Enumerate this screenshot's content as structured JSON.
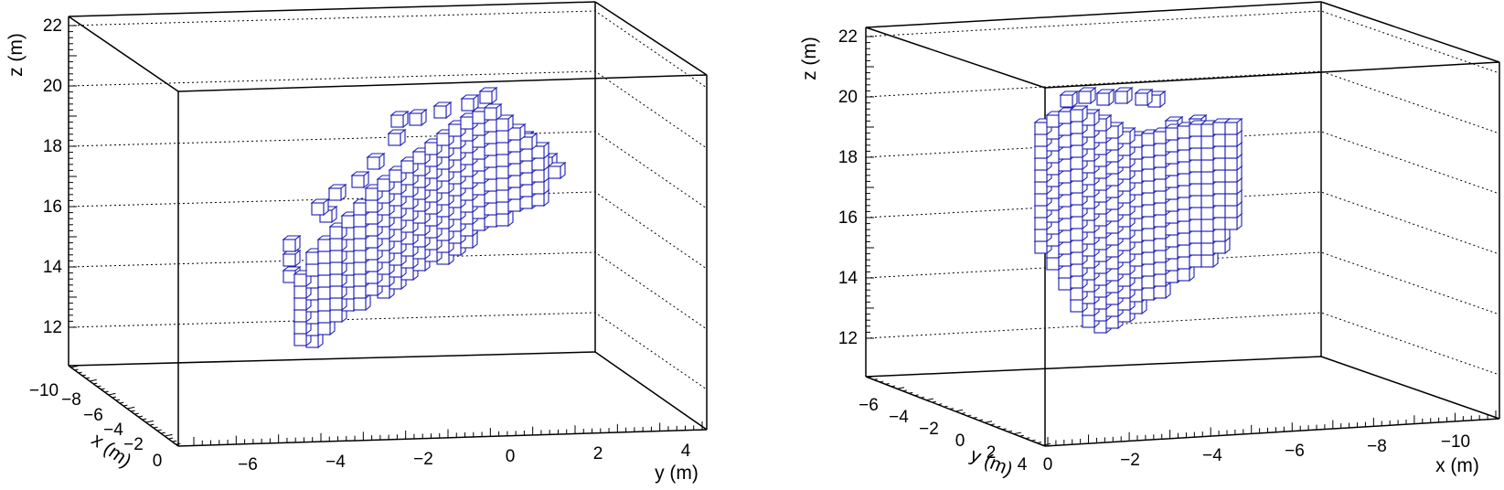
{
  "chart_data": [
    {
      "type": "scatter",
      "title": "",
      "xlabel": "x (m)",
      "ylabel": "y (m)",
      "zlabel": "z (m)",
      "xlim": [
        -11,
        0
      ],
      "ylim": [
        -7,
        4.5
      ],
      "zlim": [
        11,
        22.5
      ],
      "x_ticks": [
        "0",
        "−2",
        "−4",
        "−6",
        "−8",
        "−10"
      ],
      "y_ticks": [
        "−6",
        "−4",
        "−2",
        "0",
        "2",
        "4"
      ],
      "z_ticks": [
        "12",
        "14",
        "16",
        "18",
        "20",
        "22"
      ],
      "grid": true,
      "view": "looking along +x",
      "voxel_size_m": 0.6,
      "voxel_shape": "elongated region rising from lower-left to upper-right"
    },
    {
      "type": "scatter",
      "title": "",
      "xlabel": "x (m)",
      "ylabel": "y (m)",
      "zlabel": "z (m)",
      "xlim": [
        -11,
        0
      ],
      "ylim": [
        -7,
        5
      ],
      "zlim": [
        11,
        22.5
      ],
      "x_ticks": [
        "0",
        "−2",
        "−4",
        "−6",
        "−8",
        "−10"
      ],
      "y_ticks": [
        "−6",
        "−4",
        "−2",
        "0",
        "2",
        "4"
      ],
      "z_ticks": [
        "12",
        "14",
        "16",
        "18",
        "20",
        "22"
      ],
      "grid": true,
      "view": "looking along −y",
      "voxel_size_m": 0.6,
      "voxel_shape": "compact rounded region narrowing toward the bottom"
    }
  ],
  "colors": {
    "voxel_edge": "#1c1cb4",
    "frame": "#000000"
  }
}
